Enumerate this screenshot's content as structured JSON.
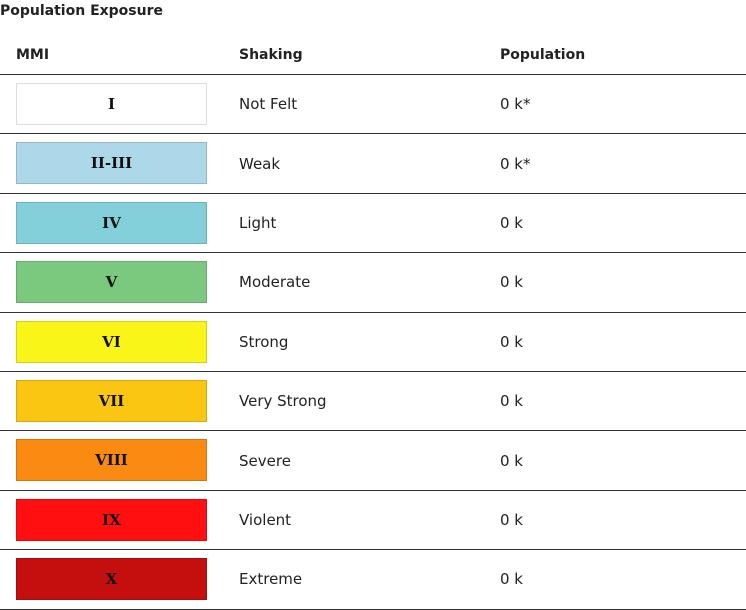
{
  "title": "Population Exposure",
  "table": {
    "header": [
      "MMI",
      "Shaking",
      "Population"
    ],
    "rows": [
      [
        "I",
        "Not Felt",
        "0 k*"
      ],
      [
        "II-III",
        "Weak",
        "0 k*"
      ],
      [
        "IV",
        "Light",
        "0 k"
      ],
      [
        "V",
        "Moderate",
        "0 k"
      ],
      [
        "VI",
        "Strong",
        "0 k"
      ],
      [
        "VII",
        "Very Strong",
        "0 k"
      ],
      [
        "VIII",
        "Severe",
        "0 k"
      ],
      [
        "IX",
        "Violent",
        "0 k"
      ],
      [
        "X",
        "Extreme",
        "0 k"
      ]
    ]
  }
}
